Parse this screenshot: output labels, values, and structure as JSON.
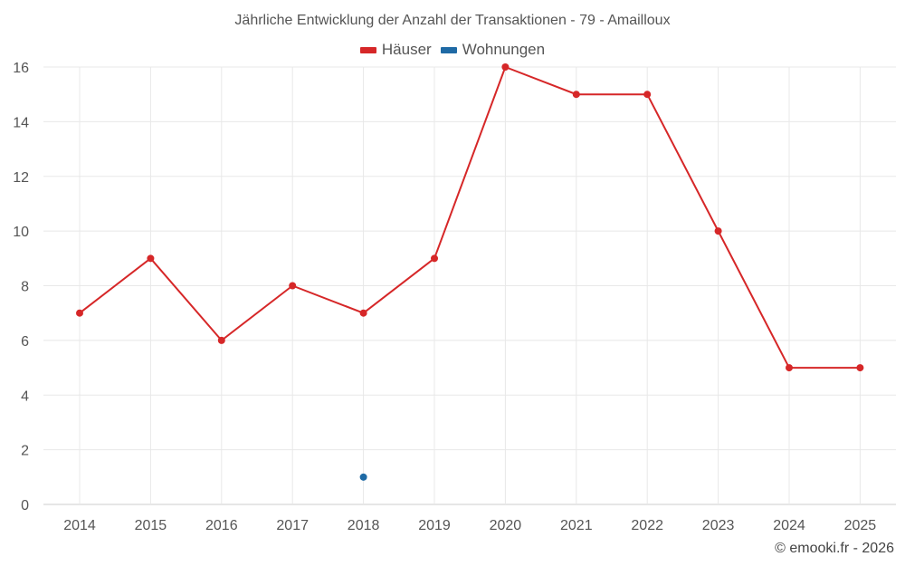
{
  "title": "Jährliche Entwicklung der Anzahl der Transaktionen - 79 - Amailloux",
  "credit": "© emooki.fr - 2026",
  "colors": {
    "hauser": "#d62728",
    "wohnungen": "#1f6aa5",
    "grid": "#e8e8e8",
    "axis": "#cccccc"
  },
  "chart_data": {
    "type": "line",
    "title": "Jährliche Entwicklung der Anzahl der Transaktionen - 79 - Amailloux",
    "categories": [
      "2014",
      "2015",
      "2016",
      "2017",
      "2018",
      "2019",
      "2020",
      "2021",
      "2022",
      "2023",
      "2024",
      "2025"
    ],
    "series": [
      {
        "name": "Häuser",
        "color": "#d62728",
        "values": [
          7,
          9,
          6,
          8,
          7,
          9,
          16,
          15,
          15,
          10,
          5,
          5
        ]
      },
      {
        "name": "Wohnungen",
        "color": "#1f6aa5",
        "values": [
          null,
          null,
          null,
          null,
          1,
          null,
          null,
          null,
          null,
          null,
          null,
          null
        ]
      }
    ],
    "ylim": [
      0,
      16
    ],
    "yticks": [
      "0",
      "2",
      "4",
      "6",
      "8",
      "10",
      "12",
      "14",
      "16"
    ],
    "grid": true,
    "legend": "top-center"
  }
}
